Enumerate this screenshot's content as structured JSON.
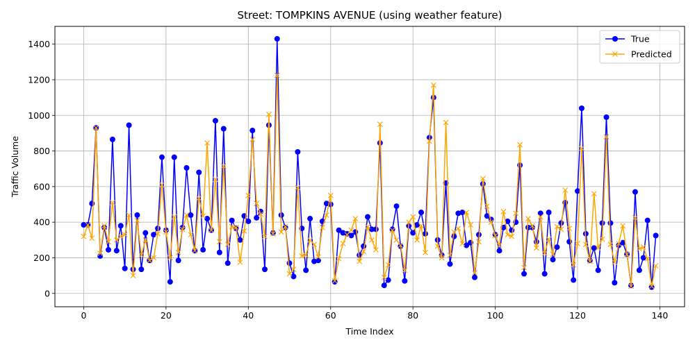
{
  "chart_data": {
    "type": "line",
    "title": "Street: TOMPKINS AVENUE (using weather feature)",
    "xlabel": "Time Index",
    "ylabel": "Traffic Volume",
    "xlim": [
      -7,
      146
    ],
    "ylim": [
      -75,
      1500
    ],
    "xticks": [
      0,
      20,
      40,
      60,
      80,
      100,
      120,
      140
    ],
    "yticks": [
      0,
      200,
      400,
      600,
      800,
      1000,
      1200,
      1400
    ],
    "grid": true,
    "legend_position": "top-right",
    "series": [
      {
        "name": "True",
        "color": "#0000ff",
        "marker": "circle",
        "values": [
          385,
          385,
          505,
          930,
          210,
          370,
          245,
          865,
          240,
          380,
          140,
          945,
          135,
          440,
          135,
          340,
          185,
          330,
          365,
          765,
          355,
          65,
          765,
          185,
          370,
          705,
          440,
          240,
          680,
          245,
          420,
          355,
          970,
          230,
          925,
          170,
          410,
          365,
          300,
          435,
          405,
          915,
          425,
          460,
          135,
          945,
          340,
          1430,
          440,
          370,
          170,
          95,
          795,
          365,
          130,
          420,
          180,
          185,
          405,
          505,
          500,
          65,
          355,
          340,
          335,
          325,
          345,
          215,
          265,
          430,
          360,
          360,
          845,
          45,
          75,
          360,
          490,
          265,
          70,
          380,
          340,
          385,
          455,
          335,
          875,
          1100,
          300,
          215,
          620,
          165,
          320,
          450,
          455,
          270,
          285,
          90,
          330,
          615,
          435,
          415,
          330,
          240,
          370,
          405,
          355,
          400,
          720,
          110,
          370,
          370,
          290,
          450,
          110,
          455,
          190,
          260,
          395,
          510,
          290,
          75,
          575,
          1040,
          335,
          185,
          255,
          130,
          395,
          990,
          395,
          60,
          270,
          285,
          220,
          45,
          570,
          130,
          200,
          410,
          35,
          325
        ]
      },
      {
        "name": "Predicted",
        "color": "#ffa500",
        "marker": "x",
        "values": [
          320,
          385,
          310,
          930,
          225,
          380,
          290,
          510,
          300,
          320,
          330,
          440,
          100,
          410,
          215,
          300,
          185,
          200,
          335,
          610,
          345,
          200,
          430,
          230,
          360,
          440,
          330,
          240,
          535,
          435,
          845,
          355,
          640,
          290,
          715,
          275,
          375,
          370,
          175,
          350,
          550,
          865,
          505,
          445,
          320,
          1005,
          335,
          1225,
          345,
          375,
          110,
          135,
          595,
          210,
          215,
          300,
          275,
          205,
          370,
          440,
          550,
          70,
          195,
          280,
          330,
          355,
          420,
          180,
          235,
          375,
          300,
          245,
          950,
          90,
          160,
          355,
          300,
          270,
          130,
          400,
          430,
          300,
          380,
          230,
          855,
          1170,
          265,
          200,
          960,
          215,
          345,
          365,
          280,
          455,
          385,
          115,
          290,
          645,
          490,
          400,
          325,
          270,
          460,
          330,
          320,
          450,
          835,
          145,
          420,
          380,
          255,
          430,
          225,
          305,
          220,
          375,
          360,
          580,
          365,
          160,
          280,
          815,
          275,
          180,
          560,
          255,
          305,
          880,
          275,
          175,
          280,
          380,
          220,
          40,
          425,
          250,
          260,
          195,
          40,
          155
        ]
      }
    ]
  }
}
